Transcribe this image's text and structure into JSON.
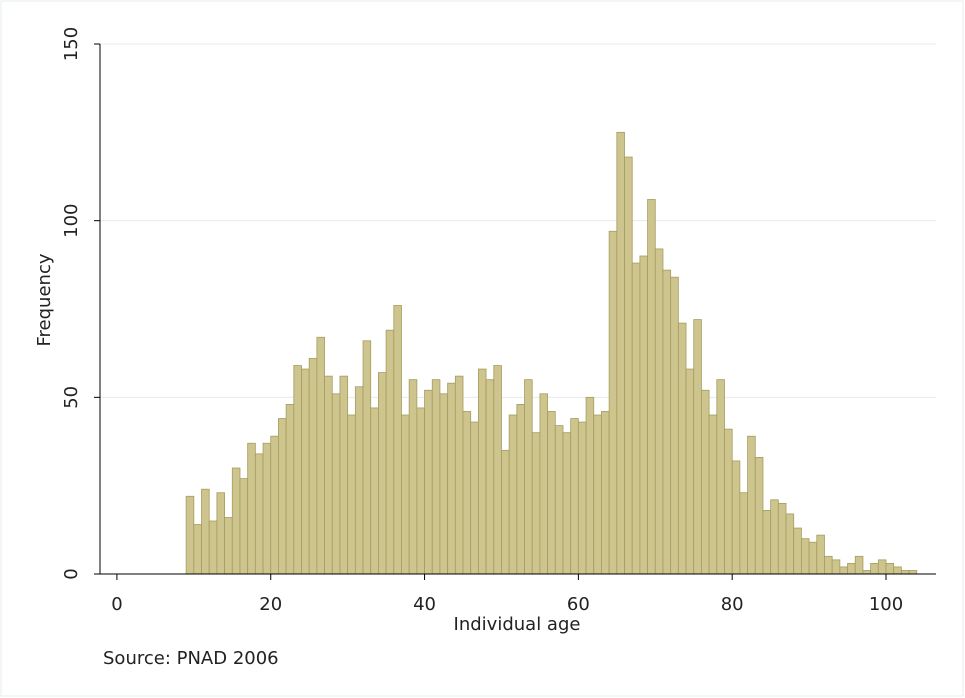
{
  "chart_data": {
    "type": "histogram",
    "x_label": "Individual age",
    "y_label": "Frequency",
    "note": "Source: PNAD 2006",
    "bins": [
      9,
      10,
      11,
      12,
      13,
      14,
      15,
      16,
      17,
      18,
      19,
      20,
      21,
      22,
      23,
      24,
      25,
      26,
      27,
      28,
      29,
      30,
      31,
      32,
      33,
      34,
      35,
      36,
      37,
      38,
      39,
      40,
      41,
      42,
      43,
      44,
      45,
      46,
      47,
      48,
      49,
      50,
      51,
      52,
      53,
      54,
      55,
      56,
      57,
      58,
      59,
      60,
      61,
      62,
      63,
      64,
      65,
      66,
      67,
      68,
      69,
      70,
      71,
      72,
      73,
      74,
      75,
      76,
      77,
      78,
      79,
      80,
      81,
      82,
      83,
      84,
      85,
      86,
      87,
      88,
      89,
      90,
      91,
      92,
      93,
      94,
      95,
      96,
      97,
      98,
      99,
      100,
      101,
      102,
      103,
      104
    ],
    "values": [
      22,
      14,
      24,
      15,
      23,
      16,
      30,
      27,
      37,
      34,
      37,
      39,
      44,
      48,
      59,
      58,
      61,
      67,
      56,
      51,
      56,
      45,
      53,
      66,
      47,
      57,
      69,
      76,
      45,
      55,
      47,
      52,
      55,
      51,
      54,
      56,
      46,
      43,
      58,
      55,
      59,
      35,
      45,
      48,
      55,
      40,
      51,
      46,
      42,
      40,
      44,
      43,
      50,
      45,
      46,
      97,
      125,
      118,
      88,
      90,
      106,
      92,
      86,
      84,
      71,
      58,
      72,
      52,
      45,
      55,
      41,
      32,
      23,
      39,
      33,
      18,
      21,
      20,
      17,
      13,
      10,
      9,
      11,
      5,
      4,
      2,
      3,
      5,
      1,
      3,
      4,
      3,
      2,
      1,
      1
    ],
    "color": "#cdc48e",
    "edge_color": "#a59d5e",
    "xlim": [
      -2.2,
      106.5
    ],
    "ylim": [
      0,
      150
    ],
    "xticks": [
      0,
      20,
      40,
      60,
      80,
      100
    ],
    "yticks": [
      0,
      50,
      100,
      150
    ],
    "grid": true
  }
}
